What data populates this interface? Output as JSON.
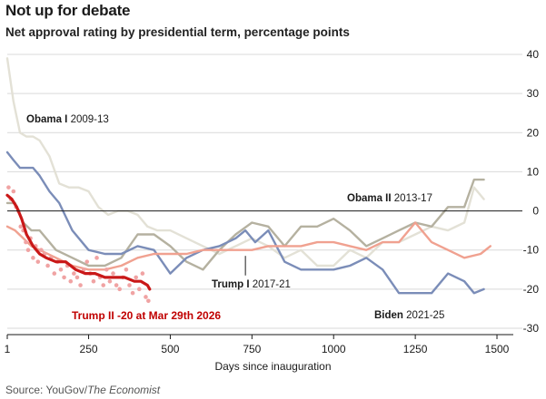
{
  "chart_data": {
    "type": "line",
    "title": "Not up for debate",
    "subtitle": "Net approval rating by presidential term, percentage points",
    "xlabel": "Days since inauguration",
    "ylabel": "",
    "xlim": [
      1,
      1550
    ],
    "ylim": [
      -30,
      40
    ],
    "xticks": [
      1,
      250,
      500,
      750,
      1000,
      1250,
      1500
    ],
    "yticks": [
      40,
      30,
      20,
      10,
      0,
      -10,
      -20,
      -30
    ],
    "grid": true,
    "source_prefix": "Source: YouGov/",
    "source_publication": "The Economist",
    "colors": {
      "obama1": "#e3e1d6",
      "obama2": "#b5b1a0",
      "biden": "#7b8db8",
      "trump1": "#f0a190",
      "trump2": "#c91818",
      "trump2_dots": "#f0a3a3",
      "zero_line": "#1a1a1a",
      "grid": "#d9d9d9"
    },
    "series": [
      {
        "name": "Obama I 2009-13",
        "name_bold": "Obama I",
        "name_rest": " 2009-13",
        "key": "obama1",
        "x": [
          1,
          20,
          40,
          60,
          80,
          100,
          130,
          160,
          190,
          220,
          250,
          280,
          310,
          340,
          370,
          400,
          430,
          460,
          500,
          550,
          600,
          650,
          700,
          750,
          800,
          850,
          900,
          950,
          1000,
          1050,
          1100,
          1150,
          1200,
          1250,
          1300,
          1350,
          1400,
          1430,
          1460
        ],
        "values": [
          39,
          28,
          20,
          19,
          19,
          18,
          14,
          7,
          6,
          6,
          5,
          1,
          -1,
          0,
          0,
          -1,
          -4,
          -5,
          -5,
          -7,
          -9,
          -11,
          -9,
          -7,
          -9,
          -12,
          -10,
          -14,
          -14,
          -10,
          -12,
          -8,
          -8,
          -6,
          -4,
          -5,
          -3,
          6,
          3
        ]
      },
      {
        "name": "Obama II 2013-17",
        "name_bold": "Obama II",
        "name_rest": " 2013-17",
        "key": "obama2",
        "x": [
          1,
          25,
          50,
          75,
          100,
          150,
          200,
          250,
          300,
          350,
          400,
          450,
          500,
          550,
          600,
          650,
          700,
          750,
          800,
          850,
          900,
          950,
          1000,
          1050,
          1100,
          1150,
          1200,
          1250,
          1300,
          1350,
          1400,
          1430,
          1460
        ],
        "values": [
          2,
          2,
          -3,
          -5,
          -5,
          -10,
          -12,
          -14,
          -14,
          -12,
          -6,
          -6,
          -9,
          -13,
          -15,
          -10,
          -6,
          -3,
          -4,
          -9,
          -4,
          -4,
          -2,
          -5,
          -9,
          -7,
          -5,
          -3,
          -4,
          1,
          1,
          8,
          8
        ]
      },
      {
        "name": "Biden 2021-25",
        "name_bold": "Biden",
        "name_rest": " 2021-25",
        "key": "biden",
        "x": [
          1,
          20,
          40,
          60,
          80,
          100,
          130,
          160,
          200,
          250,
          300,
          350,
          400,
          450,
          500,
          550,
          600,
          650,
          700,
          730,
          760,
          800,
          850,
          900,
          950,
          1000,
          1050,
          1100,
          1150,
          1200,
          1250,
          1300,
          1350,
          1400,
          1430,
          1460
        ],
        "values": [
          15,
          13,
          11,
          11,
          11,
          9,
          5,
          2,
          -5,
          -10,
          -11,
          -11,
          -9,
          -10,
          -16,
          -12,
          -10,
          -9,
          -7,
          -5,
          -8,
          -5,
          -13,
          -15,
          -15,
          -15,
          -14,
          -12,
          -15,
          -21,
          -21,
          -21,
          -16,
          -18,
          -21,
          -20
        ]
      },
      {
        "name": "Trump I 2017-21",
        "name_bold": "Trump I",
        "name_rest": " 2017-21",
        "key": "trump1",
        "x": [
          1,
          25,
          50,
          75,
          100,
          150,
          200,
          250,
          300,
          350,
          400,
          450,
          500,
          550,
          600,
          650,
          700,
          750,
          800,
          850,
          900,
          950,
          1000,
          1050,
          1100,
          1150,
          1200,
          1250,
          1300,
          1350,
          1400,
          1450,
          1480
        ],
        "values": [
          -4,
          -5,
          -7,
          -9,
          -10,
          -12,
          -14,
          -15,
          -15,
          -14,
          -12,
          -11,
          -11,
          -11,
          -10,
          -10,
          -10,
          -10,
          -9,
          -9,
          -9,
          -8,
          -8,
          -9,
          -10,
          -8,
          -8,
          -3,
          -8,
          -10,
          -12,
          -11,
          -9
        ]
      },
      {
        "name": "Trump II",
        "key": "trump2",
        "x": [
          1,
          15,
          30,
          45,
          60,
          80,
          100,
          120,
          150,
          180,
          210,
          240,
          270,
          300,
          330,
          360,
          390,
          410,
          430,
          437
        ],
        "values": [
          4,
          3,
          1,
          -2,
          -6,
          -9,
          -11,
          -12,
          -13,
          -13,
          -15,
          -16,
          -16,
          -17,
          -17,
          -17,
          -18,
          -18,
          -19,
          -20
        ]
      }
    ],
    "trump2_polls": {
      "x": [
        5,
        12,
        20,
        28,
        35,
        42,
        50,
        58,
        65,
        72,
        80,
        88,
        95,
        105,
        115,
        125,
        135,
        145,
        155,
        165,
        175,
        185,
        195,
        205,
        215,
        225,
        235,
        245,
        255,
        265,
        275,
        285,
        295,
        305,
        315,
        325,
        335,
        345,
        355,
        365,
        375,
        385,
        395,
        405,
        415,
        425,
        433
      ],
      "values": [
        6,
        3,
        5,
        1,
        0,
        -4,
        -5,
        -8,
        -10,
        -7,
        -12,
        -9,
        -13,
        -10,
        -11,
        -14,
        -12,
        -16,
        -13,
        -15,
        -17,
        -14,
        -18,
        -16,
        -17,
        -19,
        -15,
        -13,
        -16,
        -18,
        -12,
        -17,
        -19,
        -15,
        -18,
        -16,
        -19,
        -20,
        -17,
        -15,
        -19,
        -21,
        -17,
        -20,
        -16,
        -22,
        -23
      ]
    },
    "annotations": {
      "obama1": "Obama I 2009-13",
      "obama2": "Obama II 2013-17",
      "biden": "Biden 2021-25",
      "trump1": "Trump I 2017-21",
      "trump2": "Trump II -20 at Mar 29th 2026"
    }
  }
}
